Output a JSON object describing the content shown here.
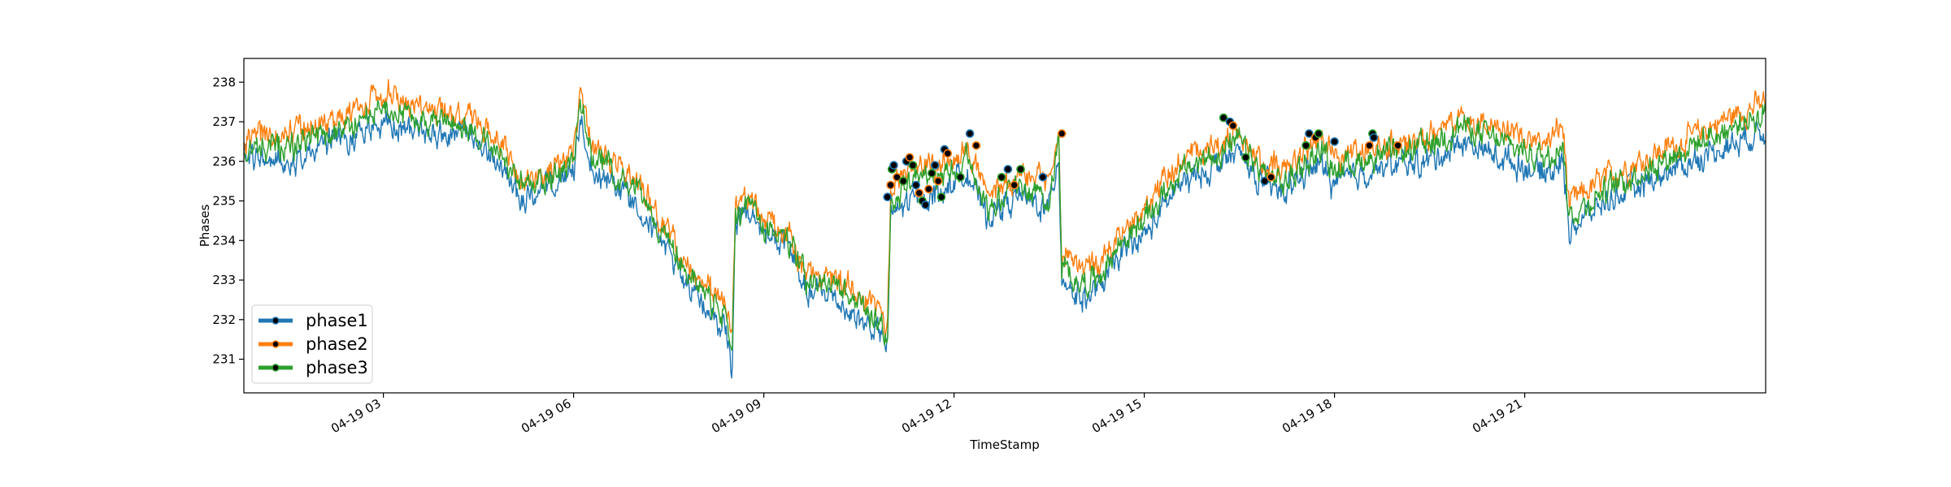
{
  "chart_data": {
    "type": "line",
    "title": "",
    "xlabel": "TimeStamp",
    "ylabel": "Phases",
    "ylim": [
      230.15,
      238.6
    ],
    "xlim_hours": [
      0.8,
      24.8
    ],
    "x_ticks": [
      {
        "hour": 3,
        "label": "04-19 03"
      },
      {
        "hour": 6,
        "label": "04-19 06"
      },
      {
        "hour": 9,
        "label": "04-19 09"
      },
      {
        "hour": 12,
        "label": "04-19 12"
      },
      {
        "hour": 15,
        "label": "04-19 15"
      },
      {
        "hour": 18,
        "label": "04-19 18"
      },
      {
        "hour": 21,
        "label": "04-19 21"
      }
    ],
    "y_ticks": [
      231,
      232,
      233,
      234,
      235,
      236,
      237,
      238
    ],
    "grid": false,
    "legend_position": "lower-left",
    "series": [
      {
        "name": "phase1",
        "color": "#1f77b4",
        "points": [
          [
            0.8,
            236.1
          ],
          [
            1.5,
            236.0
          ],
          [
            2.2,
            236.5
          ],
          [
            3.0,
            236.9
          ],
          [
            3.8,
            236.7
          ],
          [
            4.3,
            236.6
          ],
          [
            4.8,
            236.0
          ],
          [
            5.2,
            235.0
          ],
          [
            5.6,
            235.3
          ],
          [
            6.0,
            235.7
          ],
          [
            6.1,
            237.0
          ],
          [
            6.3,
            235.8
          ],
          [
            7.0,
            235.0
          ],
          [
            7.6,
            233.4
          ],
          [
            8.0,
            232.5
          ],
          [
            8.3,
            231.9
          ],
          [
            8.4,
            231.8
          ],
          [
            8.5,
            230.6
          ],
          [
            8.55,
            234.4
          ],
          [
            8.7,
            234.7
          ],
          [
            9.0,
            234.2
          ],
          [
            9.4,
            233.8
          ],
          [
            9.7,
            232.6
          ],
          [
            10.0,
            232.7
          ],
          [
            10.5,
            232.0
          ],
          [
            10.8,
            231.7
          ],
          [
            10.95,
            231.3
          ],
          [
            11.0,
            234.6
          ],
          [
            11.3,
            235.0
          ],
          [
            11.8,
            235.2
          ],
          [
            12.2,
            235.8
          ],
          [
            12.5,
            234.6
          ],
          [
            13.0,
            235.1
          ],
          [
            13.5,
            234.8
          ],
          [
            13.65,
            236.2
          ],
          [
            13.7,
            233.1
          ],
          [
            14.0,
            232.5
          ],
          [
            14.3,
            232.8
          ],
          [
            14.6,
            233.6
          ],
          [
            15.0,
            234.1
          ],
          [
            15.5,
            235.3
          ],
          [
            16.0,
            235.8
          ],
          [
            16.5,
            236.2
          ],
          [
            16.8,
            235.5
          ],
          [
            17.2,
            235.2
          ],
          [
            17.5,
            235.7
          ],
          [
            17.8,
            235.9
          ],
          [
            18.0,
            235.4
          ],
          [
            18.6,
            235.8
          ],
          [
            19.0,
            235.9
          ],
          [
            19.5,
            236.0
          ],
          [
            20.0,
            236.5
          ],
          [
            20.6,
            236.1
          ],
          [
            21.3,
            235.7
          ],
          [
            21.6,
            236.0
          ],
          [
            21.7,
            234.3
          ],
          [
            22.2,
            234.9
          ],
          [
            22.8,
            235.4
          ],
          [
            23.5,
            235.9
          ],
          [
            24.2,
            236.4
          ],
          [
            24.8,
            236.8
          ]
        ]
      },
      {
        "name": "phase2",
        "color": "#ff7f0e",
        "points": [
          [
            0.8,
            236.6
          ],
          [
            1.5,
            236.7
          ],
          [
            2.2,
            237.0
          ],
          [
            3.0,
            237.7
          ],
          [
            3.8,
            237.3
          ],
          [
            4.3,
            237.1
          ],
          [
            4.8,
            236.6
          ],
          [
            5.2,
            235.5
          ],
          [
            5.6,
            235.8
          ],
          [
            6.0,
            236.2
          ],
          [
            6.1,
            237.6
          ],
          [
            6.3,
            236.3
          ],
          [
            7.0,
            235.6
          ],
          [
            7.6,
            233.9
          ],
          [
            8.0,
            233.0
          ],
          [
            8.3,
            232.5
          ],
          [
            8.4,
            232.5
          ],
          [
            8.5,
            231.5
          ],
          [
            8.55,
            234.8
          ],
          [
            8.7,
            235.1
          ],
          [
            9.0,
            234.6
          ],
          [
            9.4,
            234.1
          ],
          [
            9.7,
            233.2
          ],
          [
            10.0,
            233.2
          ],
          [
            10.5,
            232.7
          ],
          [
            10.8,
            232.3
          ],
          [
            10.95,
            231.7
          ],
          [
            11.0,
            235.2
          ],
          [
            11.3,
            235.8
          ],
          [
            11.8,
            235.9
          ],
          [
            12.2,
            236.5
          ],
          [
            12.5,
            235.1
          ],
          [
            13.0,
            235.7
          ],
          [
            13.5,
            235.4
          ],
          [
            13.65,
            236.7
          ],
          [
            13.7,
            233.7
          ],
          [
            14.0,
            233.2
          ],
          [
            14.3,
            233.4
          ],
          [
            14.6,
            234.2
          ],
          [
            15.0,
            234.8
          ],
          [
            15.5,
            235.9
          ],
          [
            16.0,
            236.3
          ],
          [
            16.5,
            236.8
          ],
          [
            16.8,
            236.0
          ],
          [
            17.2,
            235.7
          ],
          [
            17.5,
            236.2
          ],
          [
            17.8,
            236.6
          ],
          [
            18.0,
            236.1
          ],
          [
            18.6,
            236.3
          ],
          [
            19.0,
            236.4
          ],
          [
            19.5,
            236.6
          ],
          [
            20.0,
            237.2
          ],
          [
            20.6,
            236.8
          ],
          [
            21.3,
            236.4
          ],
          [
            21.6,
            236.9
          ],
          [
            21.7,
            234.9
          ],
          [
            22.2,
            235.5
          ],
          [
            22.8,
            236.0
          ],
          [
            23.5,
            236.5
          ],
          [
            24.2,
            237.1
          ],
          [
            24.8,
            237.5
          ]
        ]
      },
      {
        "name": "phase3",
        "color": "#2ca02c",
        "points": [
          [
            0.8,
            236.3
          ],
          [
            1.5,
            236.4
          ],
          [
            2.2,
            236.7
          ],
          [
            3.0,
            237.3
          ],
          [
            3.8,
            237.0
          ],
          [
            4.3,
            236.9
          ],
          [
            4.8,
            236.3
          ],
          [
            5.2,
            235.3
          ],
          [
            5.6,
            235.6
          ],
          [
            6.0,
            236.0
          ],
          [
            6.1,
            237.4
          ],
          [
            6.3,
            236.1
          ],
          [
            7.0,
            235.3
          ],
          [
            7.6,
            233.7
          ],
          [
            8.0,
            232.7
          ],
          [
            8.3,
            232.2
          ],
          [
            8.4,
            232.1
          ],
          [
            8.5,
            231.1
          ],
          [
            8.55,
            234.6
          ],
          [
            8.7,
            234.9
          ],
          [
            9.0,
            234.4
          ],
          [
            9.4,
            233.9
          ],
          [
            9.7,
            232.9
          ],
          [
            10.0,
            232.9
          ],
          [
            10.5,
            232.4
          ],
          [
            10.8,
            232.0
          ],
          [
            10.95,
            231.5
          ],
          [
            11.0,
            234.9
          ],
          [
            11.3,
            235.5
          ],
          [
            11.8,
            235.6
          ],
          [
            12.2,
            236.1
          ],
          [
            12.5,
            234.9
          ],
          [
            13.0,
            235.4
          ],
          [
            13.5,
            235.1
          ],
          [
            13.65,
            236.5
          ],
          [
            13.7,
            233.4
          ],
          [
            14.0,
            232.9
          ],
          [
            14.3,
            233.1
          ],
          [
            14.6,
            233.9
          ],
          [
            15.0,
            234.5
          ],
          [
            15.5,
            235.6
          ],
          [
            16.0,
            236.1
          ],
          [
            16.5,
            236.5
          ],
          [
            16.8,
            235.8
          ],
          [
            17.2,
            235.4
          ],
          [
            17.5,
            235.9
          ],
          [
            17.8,
            236.3
          ],
          [
            18.0,
            235.8
          ],
          [
            18.6,
            236.1
          ],
          [
            19.0,
            236.2
          ],
          [
            19.5,
            236.4
          ],
          [
            20.0,
            236.9
          ],
          [
            20.6,
            236.5
          ],
          [
            21.3,
            236.1
          ],
          [
            21.6,
            236.5
          ],
          [
            21.7,
            234.6
          ],
          [
            22.2,
            235.2
          ],
          [
            22.8,
            235.7
          ],
          [
            23.5,
            236.3
          ],
          [
            24.2,
            236.8
          ],
          [
            24.8,
            237.2
          ]
        ]
      }
    ],
    "markers": {
      "fill": "#000000",
      "points": [
        [
          10.95,
          235.1
        ],
        [
          11.0,
          235.4
        ],
        [
          11.02,
          235.8
        ],
        [
          11.05,
          235.9
        ],
        [
          11.1,
          235.6
        ],
        [
          11.2,
          235.5
        ],
        [
          11.25,
          236.0
        ],
        [
          11.3,
          236.1
        ],
        [
          11.35,
          235.9
        ],
        [
          11.4,
          235.4
        ],
        [
          11.45,
          235.2
        ],
        [
          11.5,
          235.0
        ],
        [
          11.55,
          234.9
        ],
        [
          11.6,
          235.3
        ],
        [
          11.65,
          235.7
        ],
        [
          11.7,
          235.9
        ],
        [
          11.75,
          235.5
        ],
        [
          11.8,
          235.1
        ],
        [
          11.85,
          236.3
        ],
        [
          11.9,
          236.2
        ],
        [
          12.1,
          235.6
        ],
        [
          12.25,
          236.7
        ],
        [
          12.35,
          236.4
        ],
        [
          12.75,
          235.6
        ],
        [
          12.85,
          235.8
        ],
        [
          12.95,
          235.4
        ],
        [
          13.05,
          235.8
        ],
        [
          13.4,
          235.6
        ],
        [
          13.7,
          236.7
        ],
        [
          16.25,
          237.1
        ],
        [
          16.35,
          237.0
        ],
        [
          16.4,
          236.9
        ],
        [
          16.6,
          236.1
        ],
        [
          16.9,
          235.5
        ],
        [
          17.0,
          235.6
        ],
        [
          17.55,
          236.4
        ],
        [
          17.6,
          236.7
        ],
        [
          17.7,
          236.6
        ],
        [
          17.75,
          236.7
        ],
        [
          18.0,
          236.5
        ],
        [
          18.55,
          236.4
        ],
        [
          18.6,
          236.7
        ],
        [
          18.62,
          236.6
        ],
        [
          19.0,
          236.4
        ]
      ]
    }
  }
}
